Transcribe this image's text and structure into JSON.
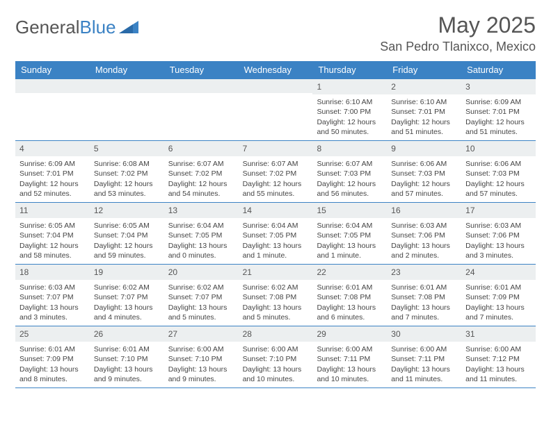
{
  "logo": {
    "part1": "General",
    "part2": "Blue"
  },
  "title": "May 2025",
  "location": "San Pedro Tlanixco, Mexico",
  "colors": {
    "header_bg": "#3b82c4",
    "header_text": "#ffffff",
    "daynum_bg": "#eceff0",
    "border": "#3b82c4",
    "title_color": "#555555",
    "text_color": "#444444"
  },
  "day_headers": [
    "Sunday",
    "Monday",
    "Tuesday",
    "Wednesday",
    "Thursday",
    "Friday",
    "Saturday"
  ],
  "weeks": [
    [
      {
        "n": "",
        "sunrise": "",
        "sunset": "",
        "daylight": ""
      },
      {
        "n": "",
        "sunrise": "",
        "sunset": "",
        "daylight": ""
      },
      {
        "n": "",
        "sunrise": "",
        "sunset": "",
        "daylight": ""
      },
      {
        "n": "",
        "sunrise": "",
        "sunset": "",
        "daylight": ""
      },
      {
        "n": "1",
        "sunrise": "Sunrise: 6:10 AM",
        "sunset": "Sunset: 7:00 PM",
        "daylight": "Daylight: 12 hours and 50 minutes."
      },
      {
        "n": "2",
        "sunrise": "Sunrise: 6:10 AM",
        "sunset": "Sunset: 7:01 PM",
        "daylight": "Daylight: 12 hours and 51 minutes."
      },
      {
        "n": "3",
        "sunrise": "Sunrise: 6:09 AM",
        "sunset": "Sunset: 7:01 PM",
        "daylight": "Daylight: 12 hours and 51 minutes."
      }
    ],
    [
      {
        "n": "4",
        "sunrise": "Sunrise: 6:09 AM",
        "sunset": "Sunset: 7:01 PM",
        "daylight": "Daylight: 12 hours and 52 minutes."
      },
      {
        "n": "5",
        "sunrise": "Sunrise: 6:08 AM",
        "sunset": "Sunset: 7:02 PM",
        "daylight": "Daylight: 12 hours and 53 minutes."
      },
      {
        "n": "6",
        "sunrise": "Sunrise: 6:07 AM",
        "sunset": "Sunset: 7:02 PM",
        "daylight": "Daylight: 12 hours and 54 minutes."
      },
      {
        "n": "7",
        "sunrise": "Sunrise: 6:07 AM",
        "sunset": "Sunset: 7:02 PM",
        "daylight": "Daylight: 12 hours and 55 minutes."
      },
      {
        "n": "8",
        "sunrise": "Sunrise: 6:07 AM",
        "sunset": "Sunset: 7:03 PM",
        "daylight": "Daylight: 12 hours and 56 minutes."
      },
      {
        "n": "9",
        "sunrise": "Sunrise: 6:06 AM",
        "sunset": "Sunset: 7:03 PM",
        "daylight": "Daylight: 12 hours and 57 minutes."
      },
      {
        "n": "10",
        "sunrise": "Sunrise: 6:06 AM",
        "sunset": "Sunset: 7:03 PM",
        "daylight": "Daylight: 12 hours and 57 minutes."
      }
    ],
    [
      {
        "n": "11",
        "sunrise": "Sunrise: 6:05 AM",
        "sunset": "Sunset: 7:04 PM",
        "daylight": "Daylight: 12 hours and 58 minutes."
      },
      {
        "n": "12",
        "sunrise": "Sunrise: 6:05 AM",
        "sunset": "Sunset: 7:04 PM",
        "daylight": "Daylight: 12 hours and 59 minutes."
      },
      {
        "n": "13",
        "sunrise": "Sunrise: 6:04 AM",
        "sunset": "Sunset: 7:05 PM",
        "daylight": "Daylight: 13 hours and 0 minutes."
      },
      {
        "n": "14",
        "sunrise": "Sunrise: 6:04 AM",
        "sunset": "Sunset: 7:05 PM",
        "daylight": "Daylight: 13 hours and 1 minute."
      },
      {
        "n": "15",
        "sunrise": "Sunrise: 6:04 AM",
        "sunset": "Sunset: 7:05 PM",
        "daylight": "Daylight: 13 hours and 1 minute."
      },
      {
        "n": "16",
        "sunrise": "Sunrise: 6:03 AM",
        "sunset": "Sunset: 7:06 PM",
        "daylight": "Daylight: 13 hours and 2 minutes."
      },
      {
        "n": "17",
        "sunrise": "Sunrise: 6:03 AM",
        "sunset": "Sunset: 7:06 PM",
        "daylight": "Daylight: 13 hours and 3 minutes."
      }
    ],
    [
      {
        "n": "18",
        "sunrise": "Sunrise: 6:03 AM",
        "sunset": "Sunset: 7:07 PM",
        "daylight": "Daylight: 13 hours and 3 minutes."
      },
      {
        "n": "19",
        "sunrise": "Sunrise: 6:02 AM",
        "sunset": "Sunset: 7:07 PM",
        "daylight": "Daylight: 13 hours and 4 minutes."
      },
      {
        "n": "20",
        "sunrise": "Sunrise: 6:02 AM",
        "sunset": "Sunset: 7:07 PM",
        "daylight": "Daylight: 13 hours and 5 minutes."
      },
      {
        "n": "21",
        "sunrise": "Sunrise: 6:02 AM",
        "sunset": "Sunset: 7:08 PM",
        "daylight": "Daylight: 13 hours and 5 minutes."
      },
      {
        "n": "22",
        "sunrise": "Sunrise: 6:01 AM",
        "sunset": "Sunset: 7:08 PM",
        "daylight": "Daylight: 13 hours and 6 minutes."
      },
      {
        "n": "23",
        "sunrise": "Sunrise: 6:01 AM",
        "sunset": "Sunset: 7:08 PM",
        "daylight": "Daylight: 13 hours and 7 minutes."
      },
      {
        "n": "24",
        "sunrise": "Sunrise: 6:01 AM",
        "sunset": "Sunset: 7:09 PM",
        "daylight": "Daylight: 13 hours and 7 minutes."
      }
    ],
    [
      {
        "n": "25",
        "sunrise": "Sunrise: 6:01 AM",
        "sunset": "Sunset: 7:09 PM",
        "daylight": "Daylight: 13 hours and 8 minutes."
      },
      {
        "n": "26",
        "sunrise": "Sunrise: 6:01 AM",
        "sunset": "Sunset: 7:10 PM",
        "daylight": "Daylight: 13 hours and 9 minutes."
      },
      {
        "n": "27",
        "sunrise": "Sunrise: 6:00 AM",
        "sunset": "Sunset: 7:10 PM",
        "daylight": "Daylight: 13 hours and 9 minutes."
      },
      {
        "n": "28",
        "sunrise": "Sunrise: 6:00 AM",
        "sunset": "Sunset: 7:10 PM",
        "daylight": "Daylight: 13 hours and 10 minutes."
      },
      {
        "n": "29",
        "sunrise": "Sunrise: 6:00 AM",
        "sunset": "Sunset: 7:11 PM",
        "daylight": "Daylight: 13 hours and 10 minutes."
      },
      {
        "n": "30",
        "sunrise": "Sunrise: 6:00 AM",
        "sunset": "Sunset: 7:11 PM",
        "daylight": "Daylight: 13 hours and 11 minutes."
      },
      {
        "n": "31",
        "sunrise": "Sunrise: 6:00 AM",
        "sunset": "Sunset: 7:12 PM",
        "daylight": "Daylight: 13 hours and 11 minutes."
      }
    ]
  ]
}
